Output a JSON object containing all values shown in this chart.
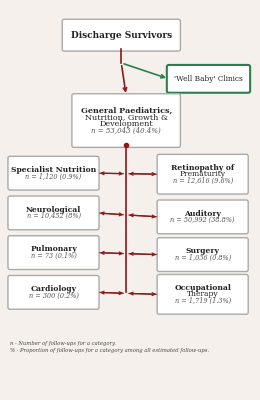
{
  "title_box": "Discharge Survivors",
  "well_baby_box": "'Well Baby' Clinics",
  "center_box_lines": [
    "General Paediatrics,",
    "Nutrition, Growth &",
    "Development"
  ],
  "center_box_n": "n = 53,043 (40.4%)",
  "left_boxes": [
    {
      "label": "Specialist Nutrition",
      "n": "n = 1,120 (0.9%)"
    },
    {
      "label": "Neurological",
      "n": "n = 10,452 (8%)"
    },
    {
      "label": "Pulmonary",
      "n": "n = 73 (0.1%)"
    },
    {
      "label": "Cardiology",
      "n": "n = 300 (0.2%)"
    }
  ],
  "right_boxes": [
    {
      "label": "Retinopathy of\nPrematurity",
      "n": "n = 12,616 (9.6%)"
    },
    {
      "label": "Auditory",
      "n": "n = 50,992 (38.8%)"
    },
    {
      "label": "Surgery",
      "n": "n = 1,036 (0.8%)"
    },
    {
      "label": "Occupational\nTherapy",
      "n": "n = 1,719 (1.3%)"
    }
  ],
  "footnote1": "n - Number of follow-ups for a category.",
  "footnote2": "% - Proportion of follow-ups for a category among all estimated follow-ups.",
  "arrow_color": "#8B1A1A",
  "green_color": "#2E7D4F",
  "box_border_color": "#999999",
  "bg_color": "#F5F0EB",
  "text_color": "#222222"
}
